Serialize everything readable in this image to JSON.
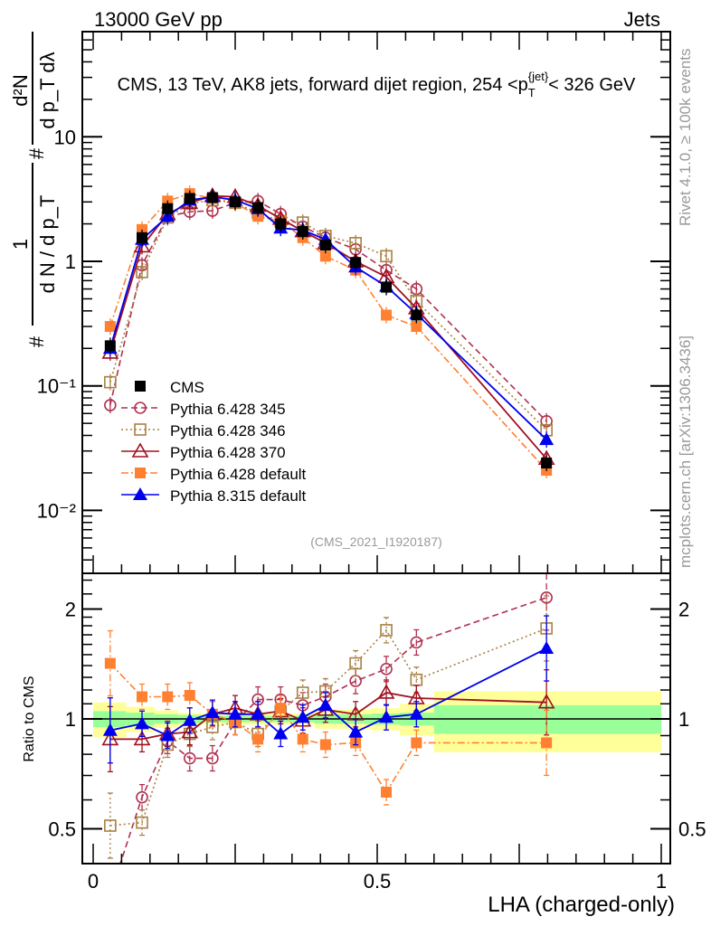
{
  "header": {
    "left": "13000 GeV pp",
    "right": "Jets"
  },
  "side_labels": {
    "rivet": "Rivet 4.1.0, ≥ 100k events",
    "mcplots": "mcplots.cern.ch [arXiv:1306.3436]"
  },
  "chart_data": [
    {
      "type": "line",
      "panel": "main",
      "title": "CMS, 13 TeV, AK8 jets, forward dijet region, 254 < p_T^{jet} < 326 GeV",
      "ylabel": "1/(dN/dp_T) d²N/(dp_T dλ)",
      "xlabel": "",
      "yscale": "log",
      "xlim": [
        -0.02,
        1.0
      ],
      "ylim": [
        0.0031,
        69
      ],
      "ytick_labels": [
        "10",
        "1",
        "10⁻¹",
        "10⁻²"
      ],
      "ytick_values": [
        10,
        1,
        0.1,
        0.01
      ],
      "legend_position": "lower-left",
      "watermark": "(CMS_2021_I1920187)",
      "x": [
        0.03,
        0.086,
        0.131,
        0.17,
        0.21,
        0.25,
        0.29,
        0.33,
        0.369,
        0.409,
        0.462,
        0.516,
        0.569,
        0.798
      ],
      "series": [
        {
          "name": "CMS",
          "color": "#000000",
          "marker": "square-filled",
          "line": "none",
          "values": [
            0.21,
            1.55,
            2.65,
            3.2,
            3.25,
            3.0,
            2.7,
            2.0,
            1.74,
            1.35,
            0.98,
            0.62,
            0.37,
            0.024
          ]
        },
        {
          "name": "Pythia 6.428 345",
          "color": "#b03050",
          "marker": "circle-open",
          "line": "dashed",
          "values": [
            0.07,
            0.93,
            2.3,
            2.5,
            2.55,
            2.95,
            3.05,
            2.4,
            1.9,
            1.55,
            1.25,
            0.85,
            0.6,
            0.052
          ]
        },
        {
          "name": "Pythia 6.428 346",
          "color": "#a88040",
          "marker": "square-open",
          "line": "dotted",
          "values": [
            0.107,
            0.82,
            2.25,
            2.9,
            3.1,
            2.95,
            2.45,
            2.1,
            2.05,
            1.6,
            1.4,
            1.1,
            0.48,
            0.044
          ]
        },
        {
          "name": "Pythia 6.428 370",
          "color": "#a01020",
          "marker": "triangle-open",
          "line": "solid",
          "values": [
            0.185,
            1.32,
            2.4,
            2.95,
            3.35,
            3.3,
            2.8,
            2.2,
            1.75,
            1.4,
            1.0,
            0.75,
            0.42,
            0.026
          ]
        },
        {
          "name": "Pythia 6.428 default",
          "color": "#ff8030",
          "marker": "square-filled",
          "line": "dashdot",
          "values": [
            0.3,
            1.8,
            3.05,
            3.5,
            3.2,
            2.95,
            2.3,
            2.1,
            1.55,
            1.1,
            0.85,
            0.37,
            0.3,
            0.021
          ]
        },
        {
          "name": "Pythia 8.315 default",
          "color": "#0000ee",
          "marker": "triangle-filled",
          "line": "solid",
          "values": [
            0.2,
            1.5,
            2.3,
            3.1,
            3.3,
            3.1,
            2.65,
            1.85,
            1.78,
            1.5,
            0.9,
            0.63,
            0.38,
            0.037
          ]
        }
      ]
    },
    {
      "type": "line",
      "panel": "ratio",
      "title": "",
      "ylabel": "Ratio to CMS",
      "xlabel": "LHA (charged-only)",
      "yscale": "log",
      "xlim": [
        -0.02,
        1.0
      ],
      "ylim": [
        0.4,
        2.5
      ],
      "ytick_labels": [
        "2",
        "1",
        "0.5"
      ],
      "ytick_values": [
        2,
        1,
        0.5
      ],
      "xtick_labels": [
        "0",
        "0.5",
        "1"
      ],
      "xtick_values": [
        0,
        0.5,
        1
      ],
      "x": [
        0.03,
        0.086,
        0.131,
        0.17,
        0.21,
        0.25,
        0.29,
        0.33,
        0.369,
        0.409,
        0.462,
        0.516,
        0.569,
        0.798
      ],
      "uncertainty_bands": {
        "bin_edges": [
          0,
          0.058,
          0.108,
          0.15,
          0.19,
          0.23,
          0.27,
          0.31,
          0.35,
          0.39,
          0.43,
          0.49,
          0.54,
          0.6,
          1.0
        ],
        "inner_color": "#99ff99",
        "outer_color": "#ffff99",
        "inner": [
          0.05,
          0.04,
          0.03,
          0.025,
          0.02,
          0.02,
          0.02,
          0.02,
          0.02,
          0.03,
          0.03,
          0.035,
          0.04,
          0.09
        ],
        "outer": [
          0.11,
          0.08,
          0.055,
          0.04,
          0.035,
          0.035,
          0.035,
          0.035,
          0.035,
          0.06,
          0.06,
          0.07,
          0.1,
          0.19
        ]
      },
      "series": [
        {
          "name": "Pythia 6.428 345",
          "color": "#b03050",
          "marker": "circle-open",
          "line": "dashed",
          "values": [
            0.33,
            0.61,
            0.87,
            0.78,
            0.78,
            0.98,
            1.13,
            1.13,
            1.09,
            1.15,
            1.27,
            1.37,
            1.62,
            2.15
          ]
        },
        {
          "name": "Pythia 6.428 346",
          "color": "#a88040",
          "marker": "square-open",
          "line": "dotted",
          "values": [
            0.51,
            0.52,
            0.85,
            0.91,
            0.95,
            0.98,
            0.91,
            1.05,
            1.18,
            1.19,
            1.42,
            1.75,
            1.28,
            1.77
          ]
        },
        {
          "name": "Pythia 6.428 370",
          "color": "#a01020",
          "marker": "triangle-open",
          "line": "solid",
          "values": [
            0.88,
            0.88,
            0.91,
            0.92,
            1.03,
            1.07,
            1.03,
            1.05,
            0.99,
            1.06,
            1.03,
            1.18,
            1.14,
            1.11
          ]
        },
        {
          "name": "Pythia 6.428 default",
          "color": "#ff8030",
          "marker": "square-filled",
          "line": "dashdot",
          "values": [
            1.42,
            1.15,
            1.15,
            1.16,
            1.03,
            0.98,
            0.88,
            1.07,
            0.88,
            0.85,
            0.86,
            0.63,
            0.86,
            0.86
          ]
        },
        {
          "name": "Pythia 8.315 default",
          "color": "#0000ee",
          "marker": "triangle-filled",
          "line": "solid",
          "values": [
            0.93,
            0.97,
            0.9,
            0.99,
            1.04,
            1.03,
            1.03,
            0.91,
            1.01,
            1.09,
            0.92,
            1.01,
            1.03,
            1.56
          ]
        }
      ],
      "reference_line": 1
    }
  ]
}
